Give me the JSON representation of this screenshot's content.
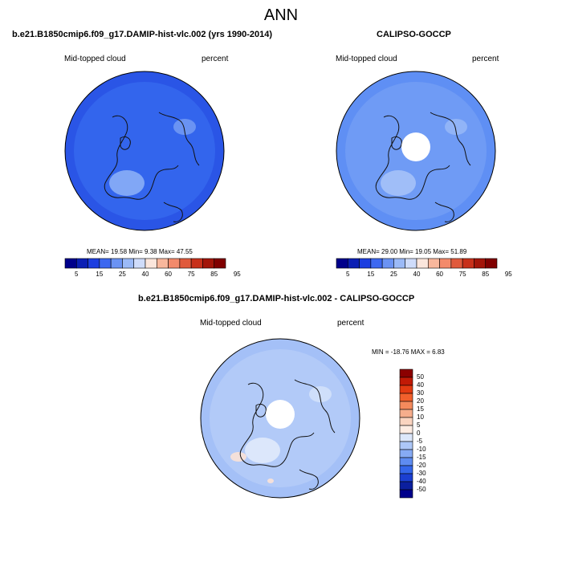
{
  "title": "ANN",
  "panels": [
    {
      "heading": "b.e21.B1850cmip6.f09_g17.DAMIP-hist-vlc.002 (yrs 1990-2014)",
      "variable": "Mid-topped cloud",
      "units": "percent",
      "stats": "MEAN=  19.58  Min=   9.38  Max=  47.55",
      "mean": 19.58,
      "min": 9.38,
      "max": 47.55,
      "colors": {
        "base": "#2a55e6",
        "ring": "#3a6ff2",
        "light": "#8fb3f7"
      }
    },
    {
      "heading": "CALIPSO-GOCCP",
      "variable": "Mid-topped cloud",
      "units": "percent",
      "stats": "MEAN=  29.00  Min=  19.05  Max=  51.89",
      "mean": 29.0,
      "min": 19.05,
      "max": 51.89,
      "colors": {
        "base": "#5f8ff4",
        "ring": "#7aa3f5",
        "light": "#a9c4f8"
      }
    },
    {
      "heading": "b.e21.B1850cmip6.f09_g17.DAMIP-hist-vlc.002 - CALIPSO-GOCCP",
      "variable": "Mid-topped cloud",
      "units": "percent",
      "stats": "MIN = -18.76 MAX =   6.83",
      "min": -18.76,
      "max": 6.83,
      "colors": {
        "base": "#a4c0f7",
        "ring": "#bcd1f9",
        "light": "#e3ecfc"
      }
    }
  ],
  "abs_colorbar": {
    "ticks": [
      "5",
      "15",
      "25",
      "40",
      "60",
      "75",
      "85",
      "95"
    ],
    "colors": [
      "#00008b",
      "#0b1fb4",
      "#1c3ee0",
      "#3d68f0",
      "#6b93f3",
      "#9bbaf7",
      "#cfdcfa",
      "#fbe6dc",
      "#f8b79c",
      "#f38a6b",
      "#e05a3c",
      "#c8301a",
      "#a31509",
      "#800000"
    ]
  },
  "diff_colorbar": {
    "ticks": [
      "50",
      "40",
      "30",
      "20",
      "15",
      "10",
      "5",
      "0",
      "-5",
      "-10",
      "-15",
      "-20",
      "-30",
      "-40",
      "-50"
    ],
    "colors": [
      "#8b0000",
      "#c11a06",
      "#e33b12",
      "#f2602c",
      "#f48a5c",
      "#f6ad8c",
      "#fad4c0",
      "#fdece3",
      "#dce7fb",
      "#adc7f7",
      "#86aaf4",
      "#5e8cf1",
      "#3466ea",
      "#1b3fd1",
      "#0b1f9e",
      "#00008b"
    ]
  }
}
